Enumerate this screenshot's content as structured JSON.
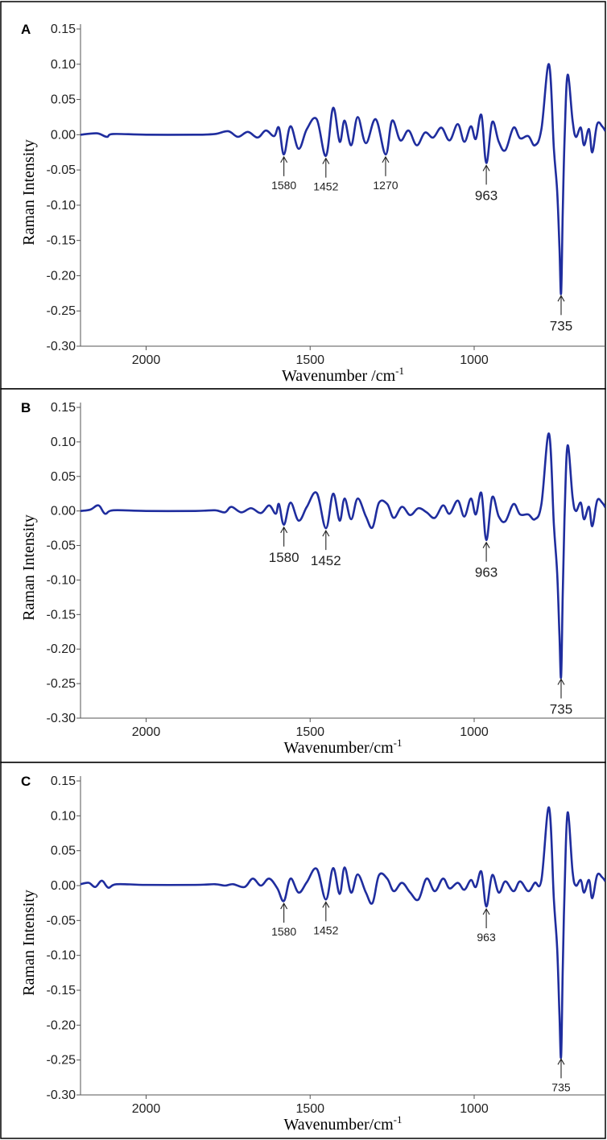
{
  "chart_data": [
    {
      "type": "line",
      "panel_label": "A",
      "xlabel": "Wavenumber /cm-1",
      "ylabel": "Raman Intensity",
      "xlim": [
        2200,
        600
      ],
      "ylim": [
        -0.3,
        0.15
      ],
      "x_reversed": true,
      "grid": false,
      "line_color": "#1f2d9e",
      "x_ticks": [
        2000,
        1500,
        1000
      ],
      "y_ticks": [
        "0.15",
        "0.10",
        "0.05",
        "0.00",
        "-0.05",
        "-0.10",
        "-0.15",
        "-0.20",
        "-0.25",
        "-0.30"
      ],
      "peaks": [
        {
          "x": 2200,
          "y": 0.0
        },
        {
          "x": 2150,
          "y": 0.002
        },
        {
          "x": 2120,
          "y": -0.003
        },
        {
          "x": 2100,
          "y": 0.001
        },
        {
          "x": 2000,
          "y": 0.0
        },
        {
          "x": 1850,
          "y": 0.0
        },
        {
          "x": 1790,
          "y": 0.001
        },
        {
          "x": 1750,
          "y": 0.005
        },
        {
          "x": 1720,
          "y": -0.003
        },
        {
          "x": 1690,
          "y": 0.004
        },
        {
          "x": 1660,
          "y": -0.004
        },
        {
          "x": 1635,
          "y": 0.006
        },
        {
          "x": 1610,
          "y": -0.002
        },
        {
          "x": 1595,
          "y": 0.01
        },
        {
          "x": 1580,
          "y": -0.028
        },
        {
          "x": 1560,
          "y": 0.012
        },
        {
          "x": 1535,
          "y": -0.02
        },
        {
          "x": 1510,
          "y": 0.008
        },
        {
          "x": 1480,
          "y": 0.022
        },
        {
          "x": 1452,
          "y": -0.03
        },
        {
          "x": 1430,
          "y": 0.038
        },
        {
          "x": 1410,
          "y": -0.01
        },
        {
          "x": 1395,
          "y": 0.02
        },
        {
          "x": 1375,
          "y": -0.015
        },
        {
          "x": 1355,
          "y": 0.025
        },
        {
          "x": 1330,
          "y": -0.012
        },
        {
          "x": 1300,
          "y": 0.022
        },
        {
          "x": 1270,
          "y": -0.028
        },
        {
          "x": 1250,
          "y": 0.02
        },
        {
          "x": 1225,
          "y": -0.008
        },
        {
          "x": 1200,
          "y": 0.006
        },
        {
          "x": 1175,
          "y": -0.015
        },
        {
          "x": 1150,
          "y": 0.003
        },
        {
          "x": 1125,
          "y": -0.004
        },
        {
          "x": 1100,
          "y": 0.01
        },
        {
          "x": 1075,
          "y": -0.008
        },
        {
          "x": 1050,
          "y": 0.015
        },
        {
          "x": 1030,
          "y": -0.01
        },
        {
          "x": 1010,
          "y": 0.012
        },
        {
          "x": 995,
          "y": -0.006
        },
        {
          "x": 978,
          "y": 0.028
        },
        {
          "x": 963,
          "y": -0.04
        },
        {
          "x": 945,
          "y": 0.018
        },
        {
          "x": 925,
          "y": -0.01
        },
        {
          "x": 905,
          "y": -0.022
        },
        {
          "x": 880,
          "y": 0.01
        },
        {
          "x": 860,
          "y": -0.005
        },
        {
          "x": 835,
          "y": -0.002
        },
        {
          "x": 815,
          "y": -0.015
        },
        {
          "x": 795,
          "y": 0.008
        },
        {
          "x": 772,
          "y": 0.1
        },
        {
          "x": 757,
          "y": -0.02
        },
        {
          "x": 747,
          "y": -0.08
        },
        {
          "x": 740,
          "y": -0.16
        },
        {
          "x": 735,
          "y": -0.225
        },
        {
          "x": 730,
          "y": -0.11
        },
        {
          "x": 724,
          "y": 0.0
        },
        {
          "x": 715,
          "y": 0.085
        },
        {
          "x": 700,
          "y": 0.02
        },
        {
          "x": 690,
          "y": -0.003
        },
        {
          "x": 675,
          "y": 0.01
        },
        {
          "x": 665,
          "y": -0.015
        },
        {
          "x": 650,
          "y": 0.008
        },
        {
          "x": 640,
          "y": -0.025
        },
        {
          "x": 625,
          "y": 0.015
        },
        {
          "x": 610,
          "y": 0.012
        },
        {
          "x": 600,
          "y": 0.005
        }
      ],
      "annotations": [
        {
          "label": "1580",
          "x": 1580,
          "y": -0.028,
          "size": 14
        },
        {
          "label": "1452",
          "x": 1452,
          "y": -0.03,
          "size": 14
        },
        {
          "label": "1270",
          "x": 1270,
          "y": -0.028,
          "size": 14
        },
        {
          "label": "963",
          "x": 963,
          "y": -0.04,
          "size": 17
        },
        {
          "label": "735",
          "x": 735,
          "y": -0.225,
          "size": 17
        }
      ]
    },
    {
      "type": "line",
      "panel_label": "B",
      "xlabel": "Wavenumber/cm-1",
      "ylabel": "Raman Intensity",
      "xlim": [
        2200,
        600
      ],
      "ylim": [
        -0.3,
        0.15
      ],
      "x_reversed": true,
      "grid": false,
      "line_color": "#1f2d9e",
      "x_ticks": [
        2000,
        1500,
        1000
      ],
      "y_ticks": [
        "0.15",
        "0.10",
        "0.05",
        "0.00",
        "-0.05",
        "-0.10",
        "-0.15",
        "-0.20",
        "-0.25",
        "-0.30"
      ],
      "peaks": [
        {
          "x": 2200,
          "y": 0.0
        },
        {
          "x": 2170,
          "y": 0.002
        },
        {
          "x": 2145,
          "y": 0.008
        },
        {
          "x": 2125,
          "y": -0.004
        },
        {
          "x": 2100,
          "y": 0.001
        },
        {
          "x": 2000,
          "y": 0.0
        },
        {
          "x": 1850,
          "y": 0.0
        },
        {
          "x": 1790,
          "y": 0.001
        },
        {
          "x": 1760,
          "y": -0.002
        },
        {
          "x": 1740,
          "y": 0.006
        },
        {
          "x": 1710,
          "y": -0.002
        },
        {
          "x": 1680,
          "y": 0.004
        },
        {
          "x": 1650,
          "y": -0.003
        },
        {
          "x": 1625,
          "y": 0.008
        },
        {
          "x": 1605,
          "y": -0.004
        },
        {
          "x": 1595,
          "y": 0.01
        },
        {
          "x": 1580,
          "y": -0.02
        },
        {
          "x": 1560,
          "y": 0.012
        },
        {
          "x": 1535,
          "y": -0.014
        },
        {
          "x": 1510,
          "y": 0.006
        },
        {
          "x": 1480,
          "y": 0.026
        },
        {
          "x": 1452,
          "y": -0.025
        },
        {
          "x": 1430,
          "y": 0.025
        },
        {
          "x": 1410,
          "y": -0.014
        },
        {
          "x": 1395,
          "y": 0.018
        },
        {
          "x": 1375,
          "y": -0.012
        },
        {
          "x": 1355,
          "y": 0.018
        },
        {
          "x": 1330,
          "y": -0.008
        },
        {
          "x": 1310,
          "y": -0.024
        },
        {
          "x": 1290,
          "y": 0.012
        },
        {
          "x": 1265,
          "y": 0.01
        },
        {
          "x": 1245,
          "y": -0.01
        },
        {
          "x": 1220,
          "y": 0.006
        },
        {
          "x": 1195,
          "y": -0.006
        },
        {
          "x": 1170,
          "y": 0.004
        },
        {
          "x": 1145,
          "y": -0.002
        },
        {
          "x": 1120,
          "y": -0.01
        },
        {
          "x": 1095,
          "y": 0.008
        },
        {
          "x": 1075,
          "y": -0.004
        },
        {
          "x": 1050,
          "y": 0.015
        },
        {
          "x": 1030,
          "y": -0.008
        },
        {
          "x": 1010,
          "y": 0.018
        },
        {
          "x": 995,
          "y": -0.005
        },
        {
          "x": 978,
          "y": 0.026
        },
        {
          "x": 963,
          "y": -0.042
        },
        {
          "x": 945,
          "y": 0.02
        },
        {
          "x": 925,
          "y": -0.008
        },
        {
          "x": 905,
          "y": -0.015
        },
        {
          "x": 880,
          "y": 0.01
        },
        {
          "x": 860,
          "y": -0.005
        },
        {
          "x": 835,
          "y": -0.005
        },
        {
          "x": 815,
          "y": -0.012
        },
        {
          "x": 795,
          "y": 0.01
        },
        {
          "x": 772,
          "y": 0.112
        },
        {
          "x": 757,
          "y": -0.02
        },
        {
          "x": 747,
          "y": -0.09
        },
        {
          "x": 740,
          "y": -0.18
        },
        {
          "x": 735,
          "y": -0.24
        },
        {
          "x": 730,
          "y": -0.12
        },
        {
          "x": 724,
          "y": 0.0
        },
        {
          "x": 715,
          "y": 0.095
        },
        {
          "x": 700,
          "y": 0.02
        },
        {
          "x": 690,
          "y": 0.0
        },
        {
          "x": 675,
          "y": 0.012
        },
        {
          "x": 665,
          "y": -0.012
        },
        {
          "x": 650,
          "y": 0.006
        },
        {
          "x": 640,
          "y": -0.022
        },
        {
          "x": 625,
          "y": 0.015
        },
        {
          "x": 610,
          "y": 0.012
        },
        {
          "x": 600,
          "y": 0.005
        }
      ],
      "annotations": [
        {
          "label": "1580",
          "x": 1580,
          "y": -0.02,
          "size": 17
        },
        {
          "label": "1452",
          "x": 1452,
          "y": -0.025,
          "size": 17
        },
        {
          "label": "963",
          "x": 963,
          "y": -0.042,
          "size": 17
        },
        {
          "label": "735",
          "x": 735,
          "y": -0.24,
          "size": 17
        }
      ]
    },
    {
      "type": "line",
      "panel_label": "C",
      "xlabel": "Wavenumber/cm-1",
      "ylabel": "Raman Intensity",
      "xlim": [
        2200,
        600
      ],
      "ylim": [
        -0.3,
        0.15
      ],
      "x_reversed": true,
      "grid": false,
      "line_color": "#1f2d9e",
      "x_ticks": [
        2000,
        1500,
        1000
      ],
      "y_ticks": [
        "0.15",
        "0.10",
        "0.05",
        "0.00",
        "-0.05",
        "-0.10",
        "-0.15",
        "-0.20",
        "-0.25",
        "-0.30"
      ],
      "peaks": [
        {
          "x": 2200,
          "y": 0.002
        },
        {
          "x": 2175,
          "y": 0.004
        },
        {
          "x": 2155,
          "y": -0.002
        },
        {
          "x": 2135,
          "y": 0.007
        },
        {
          "x": 2115,
          "y": -0.003
        },
        {
          "x": 2090,
          "y": 0.002
        },
        {
          "x": 2000,
          "y": 0.001
        },
        {
          "x": 1850,
          "y": 0.001
        },
        {
          "x": 1790,
          "y": 0.002
        },
        {
          "x": 1760,
          "y": 0.0
        },
        {
          "x": 1735,
          "y": 0.002
        },
        {
          "x": 1700,
          "y": -0.002
        },
        {
          "x": 1675,
          "y": 0.01
        },
        {
          "x": 1650,
          "y": 0.0
        },
        {
          "x": 1625,
          "y": 0.01
        },
        {
          "x": 1600,
          "y": -0.004
        },
        {
          "x": 1580,
          "y": -0.022
        },
        {
          "x": 1560,
          "y": 0.01
        },
        {
          "x": 1535,
          "y": -0.01
        },
        {
          "x": 1510,
          "y": 0.005
        },
        {
          "x": 1480,
          "y": 0.024
        },
        {
          "x": 1452,
          "y": -0.02
        },
        {
          "x": 1430,
          "y": 0.025
        },
        {
          "x": 1410,
          "y": -0.012
        },
        {
          "x": 1395,
          "y": 0.026
        },
        {
          "x": 1375,
          "y": -0.01
        },
        {
          "x": 1355,
          "y": 0.016
        },
        {
          "x": 1330,
          "y": -0.01
        },
        {
          "x": 1310,
          "y": -0.025
        },
        {
          "x": 1290,
          "y": 0.015
        },
        {
          "x": 1265,
          "y": 0.01
        },
        {
          "x": 1245,
          "y": -0.008
        },
        {
          "x": 1220,
          "y": 0.004
        },
        {
          "x": 1195,
          "y": -0.01
        },
        {
          "x": 1170,
          "y": -0.02
        },
        {
          "x": 1145,
          "y": 0.01
        },
        {
          "x": 1120,
          "y": -0.008
        },
        {
          "x": 1095,
          "y": 0.01
        },
        {
          "x": 1075,
          "y": -0.004
        },
        {
          "x": 1050,
          "y": 0.004
        },
        {
          "x": 1030,
          "y": -0.006
        },
        {
          "x": 1010,
          "y": 0.008
        },
        {
          "x": 995,
          "y": -0.002
        },
        {
          "x": 978,
          "y": 0.02
        },
        {
          "x": 963,
          "y": -0.03
        },
        {
          "x": 945,
          "y": 0.015
        },
        {
          "x": 925,
          "y": -0.01
        },
        {
          "x": 905,
          "y": 0.006
        },
        {
          "x": 880,
          "y": -0.008
        },
        {
          "x": 860,
          "y": 0.006
        },
        {
          "x": 835,
          "y": -0.008
        },
        {
          "x": 815,
          "y": 0.004
        },
        {
          "x": 795,
          "y": 0.008
        },
        {
          "x": 772,
          "y": 0.112
        },
        {
          "x": 757,
          "y": -0.02
        },
        {
          "x": 747,
          "y": -0.09
        },
        {
          "x": 740,
          "y": -0.185
        },
        {
          "x": 735,
          "y": -0.245
        },
        {
          "x": 730,
          "y": -0.12
        },
        {
          "x": 724,
          "y": 0.0
        },
        {
          "x": 715,
          "y": 0.105
        },
        {
          "x": 700,
          "y": 0.02
        },
        {
          "x": 690,
          "y": 0.0
        },
        {
          "x": 675,
          "y": 0.008
        },
        {
          "x": 665,
          "y": -0.01
        },
        {
          "x": 650,
          "y": 0.008
        },
        {
          "x": 640,
          "y": -0.018
        },
        {
          "x": 625,
          "y": 0.015
        },
        {
          "x": 610,
          "y": 0.012
        },
        {
          "x": 600,
          "y": 0.006
        }
      ],
      "annotations": [
        {
          "label": "1580",
          "x": 1580,
          "y": -0.022,
          "size": 14
        },
        {
          "label": "1452",
          "x": 1452,
          "y": -0.02,
          "size": 14
        },
        {
          "label": "963",
          "x": 963,
          "y": -0.03,
          "size": 14
        },
        {
          "label": "735",
          "x": 735,
          "y": -0.245,
          "size": 14
        }
      ]
    }
  ]
}
